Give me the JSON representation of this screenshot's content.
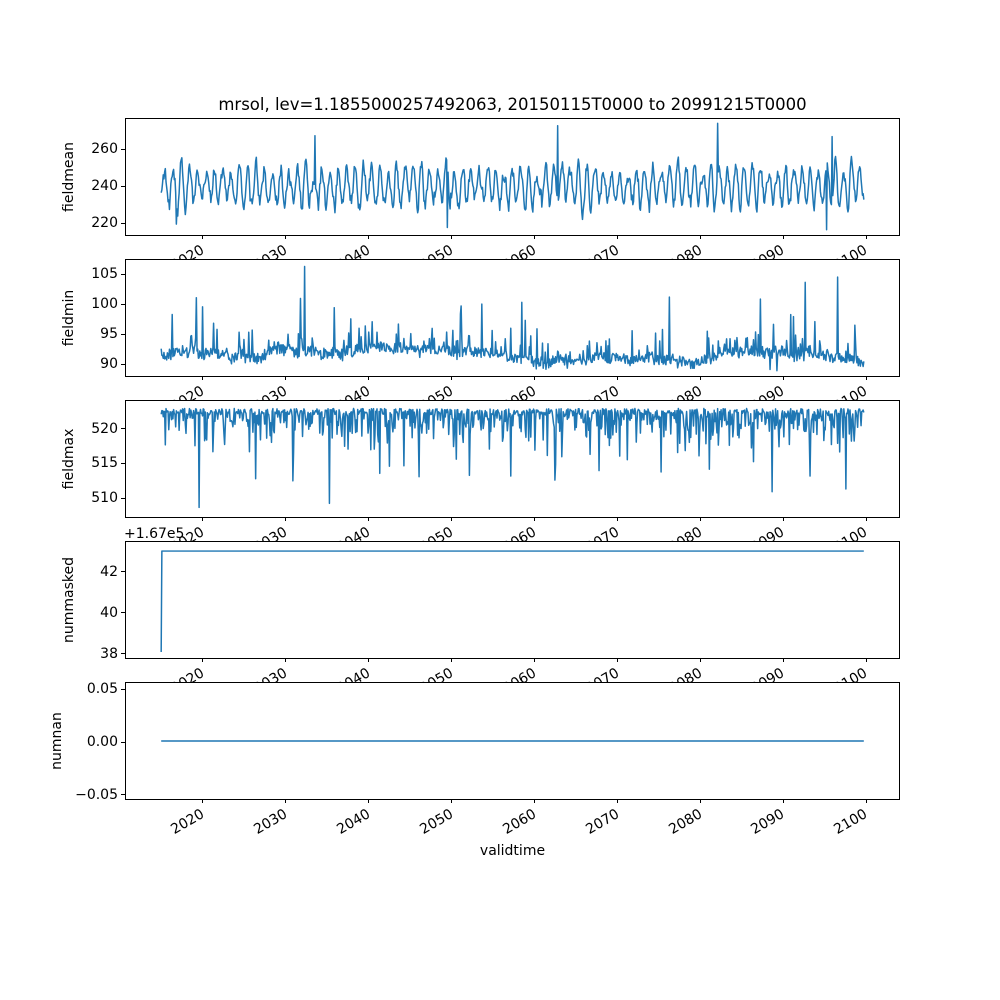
{
  "figure": {
    "title": "mrsol, lev=1.1855000257492063, 20150115T0000 to 20991215T0000",
    "xlabel": "validtime",
    "line_color": "#1f77b4",
    "axis_color": "#000000",
    "background_color": "#ffffff",
    "xlim": [
      2010.79,
      2104.21
    ],
    "xticks": [
      2020,
      2030,
      2040,
      2050,
      2060,
      2070,
      2080,
      2090,
      2100
    ],
    "xtick_labels": [
      "2020",
      "2030",
      "2040",
      "2050",
      "2060",
      "2070",
      "2080",
      "2090",
      "2100"
    ]
  },
  "chart_data": [
    {
      "type": "line",
      "ylabel": "fieldmean",
      "yticks": [
        220,
        240,
        260
      ],
      "ytick_labels": [
        "220",
        "240",
        "260"
      ],
      "ylim": [
        212.5,
        276.2
      ],
      "x_start": 2015.042,
      "x_end": 2099.958,
      "points_per_year": 12,
      "pattern": "seasonal_noisy",
      "summary": {
        "mean": 240,
        "min": 215,
        "max": 274,
        "seasonal_amplitude_range": [
          5,
          13
        ]
      },
      "gen": {
        "seed": 101,
        "base": 239.5,
        "amp_min": 5,
        "amp_var": 8,
        "noise_sd": 3.6,
        "ar": 0.55,
        "rough": 2.4,
        "clamp": [
          215.3,
          273.5
        ]
      },
      "notable_peaks": [
        [
          2033.6,
          267.0
        ],
        [
          2063.0,
          272.5
        ],
        [
          2082.3,
          273.8
        ],
        [
          2096.1,
          266.5
        ]
      ],
      "notable_lows": [
        [
          2016.9,
          218.5
        ],
        [
          2049.6,
          216.6
        ],
        [
          2095.5,
          215.4
        ]
      ]
    },
    {
      "type": "line",
      "ylabel": "fieldmin",
      "yticks": [
        90,
        95,
        100,
        105
      ],
      "ytick_labels": [
        "90",
        "95",
        "100",
        "105"
      ],
      "ylim": [
        87.7,
        107.4
      ],
      "x_start": 2015.042,
      "x_end": 2099.958,
      "points_per_year": 12,
      "pattern": "upward_spikes",
      "summary": {
        "baseline": 91,
        "min": 88.5,
        "max": 106.3
      },
      "gen": {
        "seed": 202,
        "base": 90.7,
        "drift": 0.5,
        "jitter": 1.9,
        "spike_prob": 0.13,
        "spike_min": 0.8,
        "spike_scale": 2.1,
        "clamp": [
          88.4,
          102.5
        ]
      },
      "notable_spikes": [
        [
          2019.3,
          101.0
        ],
        [
          2032.4,
          106.3
        ],
        [
          2036.0,
          99.3
        ],
        [
          2051.3,
          99.6
        ],
        [
          2053.8,
          99.9
        ],
        [
          2058.6,
          100.2
        ],
        [
          2076.5,
          101.1
        ],
        [
          2092.9,
          103.6
        ],
        [
          2096.8,
          104.5
        ]
      ],
      "notable_lows": [
        [
          2088.6,
          88.8
        ],
        [
          2089.5,
          88.6
        ]
      ]
    },
    {
      "type": "line",
      "ylabel": "fieldmax",
      "yticks": [
        510,
        515,
        520
      ],
      "ytick_labels": [
        "510",
        "515",
        "520"
      ],
      "ylim": [
        507.0,
        524.0
      ],
      "x_start": 2015.042,
      "x_end": 2099.958,
      "points_per_year": 12,
      "pattern": "downward_spikes",
      "summary": {
        "baseline": 522.5,
        "min": 508.4,
        "max": 523.3
      },
      "gen": {
        "seed": 303,
        "top": 522.9,
        "jitter": 0.9,
        "spike_prob": 0.42,
        "spike_min": 0.6,
        "spike_scale": 1.7,
        "clamp": [
          509.6,
          523.3
        ]
      },
      "notable_dips": [
        [
          2019.6,
          508.4
        ],
        [
          2026.5,
          512.6
        ],
        [
          2031.0,
          512.3
        ],
        [
          2035.4,
          509.0
        ],
        [
          2041.5,
          513.4
        ],
        [
          2046.2,
          512.9
        ],
        [
          2052.3,
          513.1
        ],
        [
          2057.3,
          513.0
        ],
        [
          2062.6,
          512.4
        ],
        [
          2068.0,
          513.8
        ],
        [
          2075.5,
          513.6
        ],
        [
          2081.3,
          514.0
        ],
        [
          2088.9,
          510.7
        ],
        [
          2093.5,
          513.0
        ],
        [
          2097.8,
          511.1
        ]
      ]
    },
    {
      "type": "line",
      "ylabel": "nummasked",
      "yticks": [
        38,
        40,
        42
      ],
      "ytick_labels": [
        "38",
        "40",
        "42"
      ],
      "ylim": [
        37.7,
        43.45
      ],
      "y_offset": 167000,
      "y_offset_text": "+1.67e5",
      "points": [
        [
          2015.042,
          167038
        ],
        [
          2015.125,
          167043
        ],
        [
          2099.958,
          167043
        ]
      ]
    },
    {
      "type": "line",
      "ylabel": "numnan",
      "yticks": [
        0.05,
        0.0,
        -0.05
      ],
      "ytick_labels": [
        "0.05",
        "0.00",
        "−0.05"
      ],
      "ylim": [
        -0.0557,
        0.0557
      ],
      "y_offset": 0,
      "points": [
        [
          2015.042,
          0.0
        ],
        [
          2099.958,
          0.0
        ]
      ]
    }
  ]
}
